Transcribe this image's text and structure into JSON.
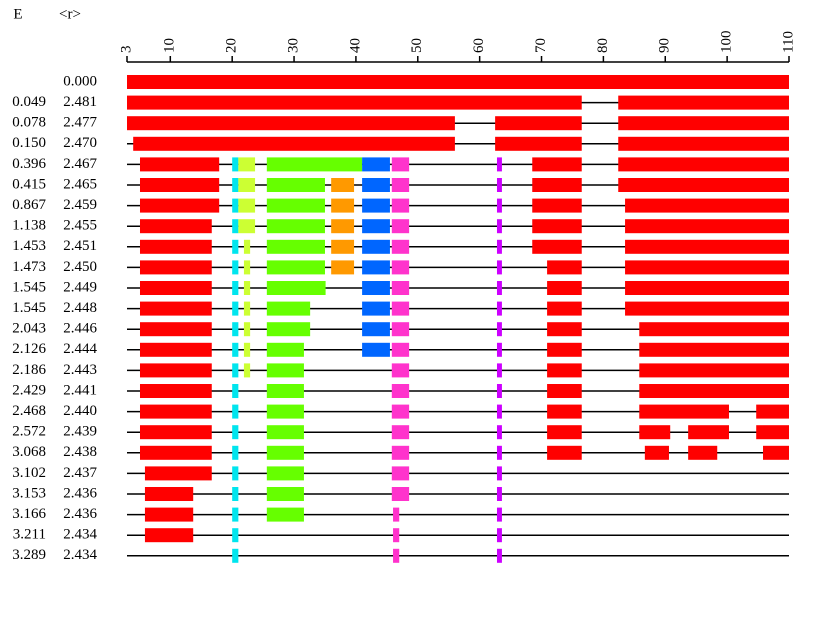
{
  "chart_data": {
    "type": "segments",
    "headers": {
      "e": "E",
      "r": "<r>"
    },
    "xlim": [
      3,
      110
    ],
    "xticks": [
      3,
      10,
      20,
      30,
      40,
      50,
      60,
      70,
      80,
      90,
      100,
      110
    ],
    "rows": [
      {
        "e": "",
        "r": "0.000",
        "segments": [
          [
            3,
            110,
            "#ff0000"
          ]
        ]
      },
      {
        "e": "0.049",
        "r": "2.481",
        "segments": [
          [
            3,
            76.5,
            "#ff0000"
          ],
          [
            82.4,
            110,
            "#ff0000"
          ]
        ]
      },
      {
        "e": "0.078",
        "r": "2.477",
        "segments": [
          [
            3,
            56,
            "#ff0000"
          ],
          [
            62.5,
            76.5,
            "#ff0000"
          ],
          [
            82.4,
            110,
            "#ff0000"
          ]
        ]
      },
      {
        "e": "0.150",
        "r": "2.470",
        "segments": [
          [
            4,
            56,
            "#ff0000"
          ],
          [
            62.5,
            76.5,
            "#ff0000"
          ],
          [
            82.4,
            110,
            "#ff0000"
          ]
        ]
      },
      {
        "e": "0.396",
        "r": "2.467",
        "segments": [
          [
            5.1,
            17.9,
            "#ff0000"
          ],
          [
            20,
            21,
            "#00e5ee"
          ],
          [
            21,
            23.7,
            "#ccff33"
          ],
          [
            25.6,
            41,
            "#66ff00"
          ],
          [
            41,
            45.5,
            "#0066ff"
          ],
          [
            45.8,
            48.6,
            "#ff33cc"
          ],
          [
            62.8,
            63.6,
            "#cc00ff"
          ],
          [
            68.5,
            76.5,
            "#ff0000"
          ],
          [
            82.4,
            110,
            "#ff0000"
          ]
        ]
      },
      {
        "e": "0.415",
        "r": "2.465",
        "segments": [
          [
            5.1,
            17.9,
            "#ff0000"
          ],
          [
            20,
            21,
            "#00e5ee"
          ],
          [
            21,
            23.7,
            "#ccff33"
          ],
          [
            25.6,
            35,
            "#66ff00"
          ],
          [
            36,
            39.7,
            "#ff9900"
          ],
          [
            41,
            45.5,
            "#0066ff"
          ],
          [
            45.8,
            48.6,
            "#ff33cc"
          ],
          [
            62.8,
            63.6,
            "#cc00ff"
          ],
          [
            68.5,
            76.5,
            "#ff0000"
          ],
          [
            82.4,
            110,
            "#ff0000"
          ]
        ]
      },
      {
        "e": "0.867",
        "r": "2.459",
        "segments": [
          [
            5.1,
            17.9,
            "#ff0000"
          ],
          [
            20,
            21,
            "#00e5ee"
          ],
          [
            21,
            23.7,
            "#ccff33"
          ],
          [
            25.6,
            35,
            "#66ff00"
          ],
          [
            36,
            39.7,
            "#ff9900"
          ],
          [
            41,
            45.5,
            "#0066ff"
          ],
          [
            45.8,
            48.6,
            "#ff33cc"
          ],
          [
            62.8,
            63.6,
            "#cc00ff"
          ],
          [
            68.5,
            76.5,
            "#ff0000"
          ],
          [
            83.5,
            110,
            "#ff0000"
          ]
        ]
      },
      {
        "e": "1.138",
        "r": "2.455",
        "segments": [
          [
            5.1,
            16.7,
            "#ff0000"
          ],
          [
            20,
            21,
            "#00e5ee"
          ],
          [
            21,
            23.7,
            "#ccff33"
          ],
          [
            25.6,
            35,
            "#66ff00"
          ],
          [
            36,
            39.7,
            "#ff9900"
          ],
          [
            41,
            45.5,
            "#0066ff"
          ],
          [
            45.8,
            48.6,
            "#ff33cc"
          ],
          [
            62.8,
            63.6,
            "#cc00ff"
          ],
          [
            68.5,
            76.5,
            "#ff0000"
          ],
          [
            83.5,
            110,
            "#ff0000"
          ]
        ]
      },
      {
        "e": "1.453",
        "r": "2.451",
        "segments": [
          [
            5.1,
            16.7,
            "#ff0000"
          ],
          [
            20,
            21,
            "#00e5ee"
          ],
          [
            21.9,
            22.9,
            "#ccff33"
          ],
          [
            25.6,
            35,
            "#66ff00"
          ],
          [
            36,
            39.7,
            "#ff9900"
          ],
          [
            41,
            45.5,
            "#0066ff"
          ],
          [
            45.8,
            48.6,
            "#ff33cc"
          ],
          [
            62.8,
            63.6,
            "#cc00ff"
          ],
          [
            68.5,
            76.5,
            "#ff0000"
          ],
          [
            83.5,
            110,
            "#ff0000"
          ]
        ]
      },
      {
        "e": "1.473",
        "r": "2.450",
        "segments": [
          [
            5.1,
            16.7,
            "#ff0000"
          ],
          [
            20,
            21,
            "#00e5ee"
          ],
          [
            21.9,
            22.9,
            "#ccff33"
          ],
          [
            25.6,
            35,
            "#66ff00"
          ],
          [
            36,
            39.7,
            "#ff9900"
          ],
          [
            41,
            45.5,
            "#0066ff"
          ],
          [
            45.8,
            48.6,
            "#ff33cc"
          ],
          [
            62.8,
            63.6,
            "#cc00ff"
          ],
          [
            70.9,
            76.5,
            "#ff0000"
          ],
          [
            83.5,
            110,
            "#ff0000"
          ]
        ]
      },
      {
        "e": "1.545",
        "r": "2.449",
        "segments": [
          [
            5.1,
            16.7,
            "#ff0000"
          ],
          [
            20,
            21,
            "#00e5ee"
          ],
          [
            21.9,
            22.9,
            "#ccff33"
          ],
          [
            25.6,
            35.1,
            "#66ff00"
          ],
          [
            41,
            45.5,
            "#0066ff"
          ],
          [
            45.8,
            48.6,
            "#ff33cc"
          ],
          [
            62.8,
            63.6,
            "#cc00ff"
          ],
          [
            70.9,
            76.5,
            "#ff0000"
          ],
          [
            83.5,
            110,
            "#ff0000"
          ]
        ]
      },
      {
        "e": "1.545",
        "r": "2.448",
        "segments": [
          [
            5.1,
            16.7,
            "#ff0000"
          ],
          [
            20,
            21,
            "#00e5ee"
          ],
          [
            21.9,
            22.9,
            "#ccff33"
          ],
          [
            25.6,
            32.6,
            "#66ff00"
          ],
          [
            41,
            45.5,
            "#0066ff"
          ],
          [
            45.8,
            48.6,
            "#ff33cc"
          ],
          [
            62.8,
            63.6,
            "#cc00ff"
          ],
          [
            70.9,
            76.5,
            "#ff0000"
          ],
          [
            83.5,
            110,
            "#ff0000"
          ]
        ]
      },
      {
        "e": "2.043",
        "r": "2.446",
        "segments": [
          [
            5.1,
            16.7,
            "#ff0000"
          ],
          [
            20,
            21,
            "#00e5ee"
          ],
          [
            21.9,
            22.9,
            "#ccff33"
          ],
          [
            25.6,
            32.6,
            "#66ff00"
          ],
          [
            41,
            45.5,
            "#0066ff"
          ],
          [
            45.8,
            48.6,
            "#ff33cc"
          ],
          [
            62.8,
            63.6,
            "#cc00ff"
          ],
          [
            70.9,
            76.5,
            "#ff0000"
          ],
          [
            85.8,
            110,
            "#ff0000"
          ]
        ]
      },
      {
        "e": "2.126",
        "r": "2.444",
        "segments": [
          [
            5.1,
            16.7,
            "#ff0000"
          ],
          [
            20,
            21,
            "#00e5ee"
          ],
          [
            21.9,
            22.9,
            "#ccff33"
          ],
          [
            25.6,
            31.6,
            "#66ff00"
          ],
          [
            41,
            45.5,
            "#0066ff"
          ],
          [
            45.8,
            48.6,
            "#ff33cc"
          ],
          [
            62.8,
            63.6,
            "#cc00ff"
          ],
          [
            70.9,
            76.5,
            "#ff0000"
          ],
          [
            85.8,
            110,
            "#ff0000"
          ]
        ]
      },
      {
        "e": "2.186",
        "r": "2.443",
        "segments": [
          [
            5.1,
            16.7,
            "#ff0000"
          ],
          [
            20,
            21,
            "#00e5ee"
          ],
          [
            21.9,
            22.9,
            "#ccff33"
          ],
          [
            25.6,
            31.6,
            "#66ff00"
          ],
          [
            45.8,
            48.6,
            "#ff33cc"
          ],
          [
            62.8,
            63.6,
            "#cc00ff"
          ],
          [
            70.9,
            76.5,
            "#ff0000"
          ],
          [
            85.8,
            110,
            "#ff0000"
          ]
        ]
      },
      {
        "e": "2.429",
        "r": "2.441",
        "segments": [
          [
            5.1,
            16.7,
            "#ff0000"
          ],
          [
            20,
            21,
            "#00e5ee"
          ],
          [
            25.6,
            31.6,
            "#66ff00"
          ],
          [
            45.8,
            48.6,
            "#ff33cc"
          ],
          [
            62.8,
            63.6,
            "#cc00ff"
          ],
          [
            70.9,
            76.5,
            "#ff0000"
          ],
          [
            85.8,
            110,
            "#ff0000"
          ]
        ]
      },
      {
        "e": "2.468",
        "r": "2.440",
        "segments": [
          [
            5.1,
            16.7,
            "#ff0000"
          ],
          [
            20,
            21,
            "#00e5ee"
          ],
          [
            25.6,
            31.6,
            "#66ff00"
          ],
          [
            45.8,
            48.6,
            "#ff33cc"
          ],
          [
            62.8,
            63.6,
            "#cc00ff"
          ],
          [
            70.9,
            76.5,
            "#ff0000"
          ],
          [
            85.8,
            100.3,
            "#ff0000"
          ],
          [
            104.7,
            110,
            "#ff0000"
          ]
        ]
      },
      {
        "e": "2.572",
        "r": "2.439",
        "segments": [
          [
            5.1,
            16.7,
            "#ff0000"
          ],
          [
            20,
            21,
            "#00e5ee"
          ],
          [
            25.6,
            31.6,
            "#66ff00"
          ],
          [
            45.8,
            48.6,
            "#ff33cc"
          ],
          [
            62.8,
            63.6,
            "#cc00ff"
          ],
          [
            70.9,
            76.5,
            "#ff0000"
          ],
          [
            85.8,
            90.8,
            "#ff0000"
          ],
          [
            93.7,
            100.3,
            "#ff0000"
          ],
          [
            104.7,
            110,
            "#ff0000"
          ]
        ]
      },
      {
        "e": "3.068",
        "r": "2.438",
        "segments": [
          [
            5.1,
            16.7,
            "#ff0000"
          ],
          [
            20,
            21,
            "#00e5ee"
          ],
          [
            25.6,
            31.6,
            "#66ff00"
          ],
          [
            45.8,
            48.6,
            "#ff33cc"
          ],
          [
            62.8,
            63.6,
            "#cc00ff"
          ],
          [
            70.9,
            76.5,
            "#ff0000"
          ],
          [
            86.7,
            90.6,
            "#ff0000"
          ],
          [
            93.7,
            98.4,
            "#ff0000"
          ],
          [
            105.8,
            110,
            "#ff0000"
          ]
        ]
      },
      {
        "e": "3.102",
        "r": "2.437",
        "segments": [
          [
            5.9,
            16.7,
            "#ff0000"
          ],
          [
            20,
            21,
            "#00e5ee"
          ],
          [
            25.6,
            31.6,
            "#66ff00"
          ],
          [
            45.8,
            48.6,
            "#ff33cc"
          ],
          [
            62.8,
            63.6,
            "#cc00ff"
          ]
        ]
      },
      {
        "e": "3.153",
        "r": "2.436",
        "segments": [
          [
            5.9,
            13.7,
            "#ff0000"
          ],
          [
            20,
            21,
            "#00e5ee"
          ],
          [
            25.6,
            31.6,
            "#66ff00"
          ],
          [
            45.8,
            48.6,
            "#ff33cc"
          ],
          [
            62.8,
            63.6,
            "#cc00ff"
          ]
        ]
      },
      {
        "e": "3.166",
        "r": "2.436",
        "segments": [
          [
            5.9,
            13.7,
            "#ff0000"
          ],
          [
            20,
            21,
            "#00e5ee"
          ],
          [
            25.6,
            31.6,
            "#66ff00"
          ],
          [
            46,
            47,
            "#ff33cc"
          ],
          [
            62.8,
            63.6,
            "#cc00ff"
          ]
        ]
      },
      {
        "e": "3.211",
        "r": "2.434",
        "segments": [
          [
            5.9,
            13.7,
            "#ff0000"
          ],
          [
            20,
            21,
            "#00e5ee"
          ],
          [
            46,
            47,
            "#ff33cc"
          ],
          [
            62.8,
            63.6,
            "#cc00ff"
          ]
        ]
      },
      {
        "e": "3.289",
        "r": "2.434",
        "segments": [
          [
            20,
            21,
            "#00e5ee"
          ],
          [
            46,
            47,
            "#ff33cc"
          ],
          [
            62.8,
            63.6,
            "#cc00ff"
          ]
        ]
      }
    ]
  }
}
